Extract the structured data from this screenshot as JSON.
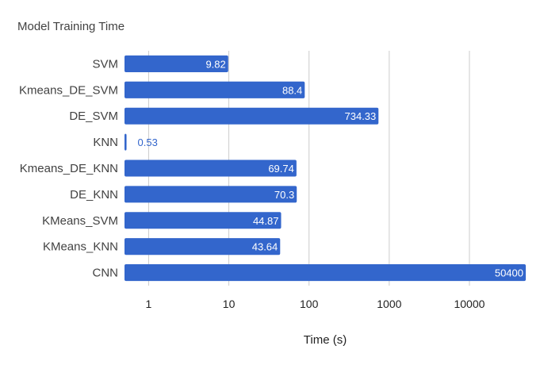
{
  "chart_data": {
    "type": "bar",
    "orientation": "horizontal",
    "title": "Model Training Time",
    "xlabel": "Time (s)",
    "ylabel": "",
    "x_scale": "log",
    "xlim": [
      0.5,
      50400
    ],
    "x_ticks": [
      "1",
      "10",
      "100",
      "1000",
      "10000"
    ],
    "x_tick_values": [
      1,
      10,
      100,
      1000,
      10000
    ],
    "grid": "vertical",
    "legend": "none",
    "bar_color": "#3366cc",
    "categories": [
      "SVM",
      "Kmeans_DE_SVM",
      "DE_SVM",
      "KNN",
      "Kmeans_DE_KNN",
      "DE_KNN",
      "KMeans_SVM",
      "KMeans_KNN",
      "CNN"
    ],
    "values": [
      9.82,
      88.4,
      734.33,
      0.53,
      69.74,
      70.3,
      44.87,
      43.64,
      50400
    ],
    "value_labels": [
      "9.82",
      "88.4",
      "734.33",
      "0.53",
      "69.74",
      "70.3",
      "44.87",
      "43.64",
      "50400"
    ]
  }
}
